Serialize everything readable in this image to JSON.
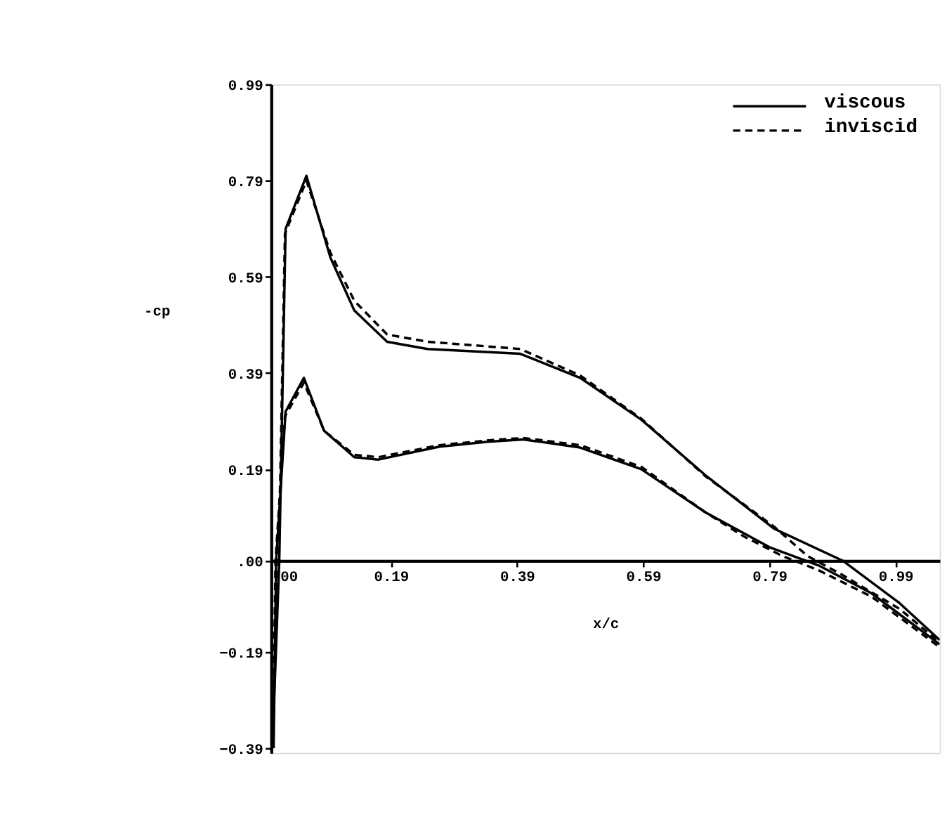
{
  "chart_data": {
    "type": "line",
    "xlabel": "x/c",
    "ylabel": "-cp",
    "xlim": [
      0,
      1.06
    ],
    "ylim": [
      -0.4,
      0.99
    ],
    "xticks": [
      {
        "value": 0,
        "label": ".00"
      },
      0.19,
      0.39,
      0.59,
      0.79,
      0.99
    ],
    "yticks": [
      -0.39,
      -0.19,
      {
        "value": 0,
        "label": ".00"
      },
      0.19,
      0.39,
      0.59,
      0.79,
      0.99
    ],
    "grid": false,
    "legend": "top right",
    "marker": "none",
    "series": [
      {
        "name": "viscous",
        "color": "#000000",
        "line_style": "solid",
        "x": [
          0.002,
          0.013,
          0.023,
          0.056,
          0.094,
          0.132,
          0.184,
          0.248,
          0.395,
          0.49,
          0.587,
          0.689,
          0.798,
          0.906,
          0.996,
          1.06
        ],
        "values": [
          -0.39,
          0.0,
          0.69,
          0.8,
          0.63,
          0.52,
          0.455,
          0.44,
          0.43,
          0.38,
          0.293,
          0.177,
          0.066,
          0.0,
          -0.088,
          -0.165
        ]
      },
      {
        "name": "inviscid",
        "color": "#000000",
        "line_style": "dashed",
        "x": [
          0.001,
          0.012,
          0.022,
          0.056,
          0.094,
          0.132,
          0.184,
          0.248,
          0.395,
          0.49,
          0.587,
          0.689,
          0.798,
          0.85,
          0.906,
          0.996,
          1.06
        ],
        "values": [
          -0.39,
          0.0,
          0.68,
          0.79,
          0.64,
          0.54,
          0.47,
          0.455,
          0.44,
          0.385,
          0.295,
          0.175,
          0.07,
          0.01,
          -0.03,
          -0.1,
          -0.17
        ]
      },
      {
        "color": "#000000",
        "line_style": "solid",
        "x": [
          0.004,
          0.008,
          0.023,
          0.052,
          0.084,
          0.132,
          0.17,
          0.267,
          0.344,
          0.4,
          0.49,
          0.587,
          0.689,
          0.79,
          0.868,
          0.952,
          1.06
        ],
        "values": [
          -0.39,
          0.0,
          0.31,
          0.38,
          0.27,
          0.215,
          0.21,
          0.237,
          0.247,
          0.252,
          0.235,
          0.19,
          0.1,
          0.028,
          -0.01,
          -0.068,
          -0.174
        ]
      },
      {
        "color": "#000000",
        "line_style": "dashed",
        "x": [
          0.003,
          0.007,
          0.022,
          0.052,
          0.084,
          0.132,
          0.17,
          0.267,
          0.344,
          0.4,
          0.49,
          0.587,
          0.689,
          0.75,
          0.81,
          0.868,
          0.952,
          1.06
        ],
        "values": [
          -0.39,
          0.0,
          0.3,
          0.37,
          0.27,
          0.22,
          0.215,
          0.24,
          0.25,
          0.255,
          0.24,
          0.195,
          0.1,
          0.05,
          0.01,
          -0.02,
          -0.075,
          -0.18
        ]
      }
    ]
  }
}
